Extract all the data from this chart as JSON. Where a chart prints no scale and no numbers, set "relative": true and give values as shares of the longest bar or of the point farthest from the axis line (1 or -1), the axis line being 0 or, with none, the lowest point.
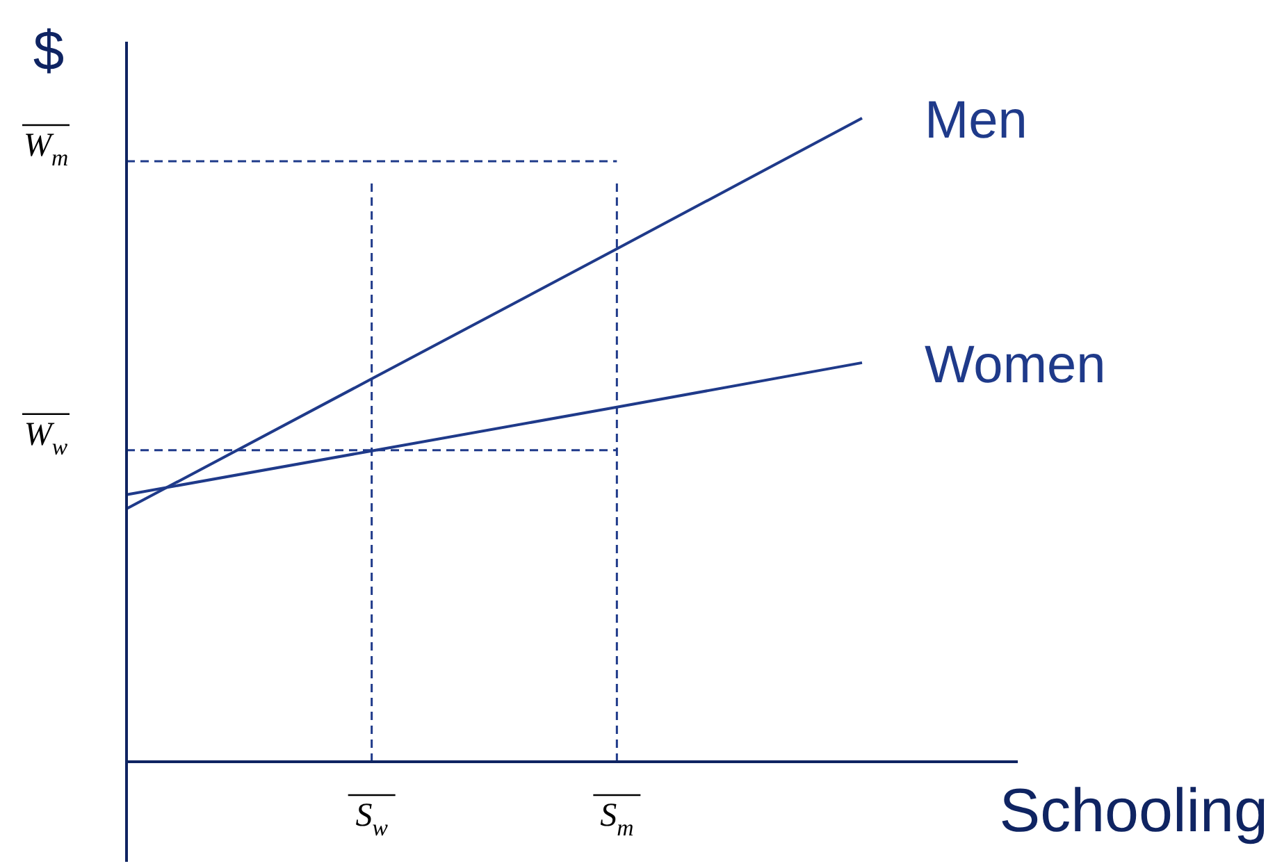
{
  "chart_data": {
    "type": "line",
    "relative": true,
    "ylabel": "$",
    "xlabel": "Schooling",
    "legend": false,
    "line_style": "solid",
    "marker": "none",
    "categories": [
      null,
      "S$_{w}$",
      "S$_{m}$",
      null
    ],
    "series": [
      {
        "name": "Men",
        "color": "#1f3a8a",
        "values": [
          0.393,
          0.595,
          0.797,
          1
        ]
      },
      {
        "name": "Women",
        "color": "#1f3a8a",
        "values": [
          0.415,
          0.483,
          0.551,
          0.62
        ]
      }
    ],
    "ref_lines": [
      {
        "axis": "y",
        "value": 0.933,
        "label": "W$_{m}$",
        "color": "#1f3a8a",
        "line_style": "dashed"
      },
      {
        "axis": "y",
        "value": 0.484,
        "label": "W$_{w}$",
        "color": "#1f3a8a",
        "line_style": "dashed"
      },
      {
        "axis": "x",
        "value": "S$_{w}$",
        "color": "#1f3a8a",
        "line_style": "dashed"
      },
      {
        "axis": "x",
        "value": "S$_{m}$",
        "color": "#1f3a8a",
        "line_style": "dashed"
      }
    ]
  }
}
